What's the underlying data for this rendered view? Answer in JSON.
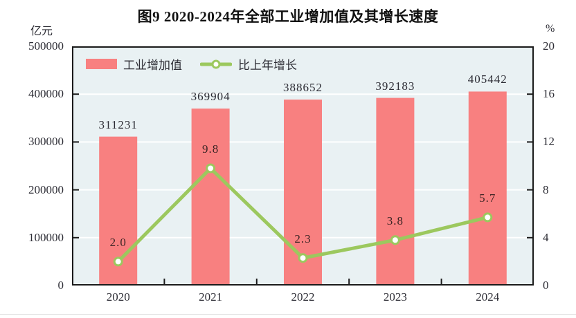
{
  "chart_data": {
    "type": "bar+line",
    "title": "图9  2020-2024年全部工业增加值及其增长速度",
    "categories": [
      "2020",
      "2021",
      "2022",
      "2023",
      "2024"
    ],
    "series": [
      {
        "name": "工业增加值",
        "type": "bar",
        "axis": "left",
        "unit": "亿元",
        "values": [
          311231,
          369904,
          388652,
          392183,
          405442
        ],
        "labels": [
          "311231",
          "369904",
          "388652",
          "392183",
          "405442"
        ]
      },
      {
        "name": "比上年增长",
        "type": "line",
        "axis": "right",
        "unit": "%",
        "values": [
          2.0,
          9.8,
          2.3,
          3.8,
          5.7
        ],
        "labels": [
          "2.0",
          "9.8",
          "2.3",
          "3.8",
          "5.7"
        ]
      }
    ],
    "left_axis": {
      "unit": "亿元",
      "min": 0,
      "max": 500000,
      "step": 100000,
      "ticks": [
        "500000",
        "400000",
        "300000",
        "200000",
        "100000",
        "0"
      ]
    },
    "right_axis": {
      "unit": "%",
      "min": 0,
      "max": 20,
      "step": 4,
      "ticks": [
        "20",
        "16",
        "12",
        "8",
        "4",
        "0"
      ]
    },
    "legend_position": "top-left-inside",
    "grid": true,
    "colors": {
      "bar": "#F88080",
      "line": "#9CC85E",
      "marker_fill": "#FFFFFF",
      "plot_background": "#E9F1F3",
      "gridline": "#FFFFFF",
      "axis": "#1A1A1A",
      "text": "#2E2E36",
      "bar_label": "#2B2B33",
      "line_label": "#3C2424"
    }
  }
}
